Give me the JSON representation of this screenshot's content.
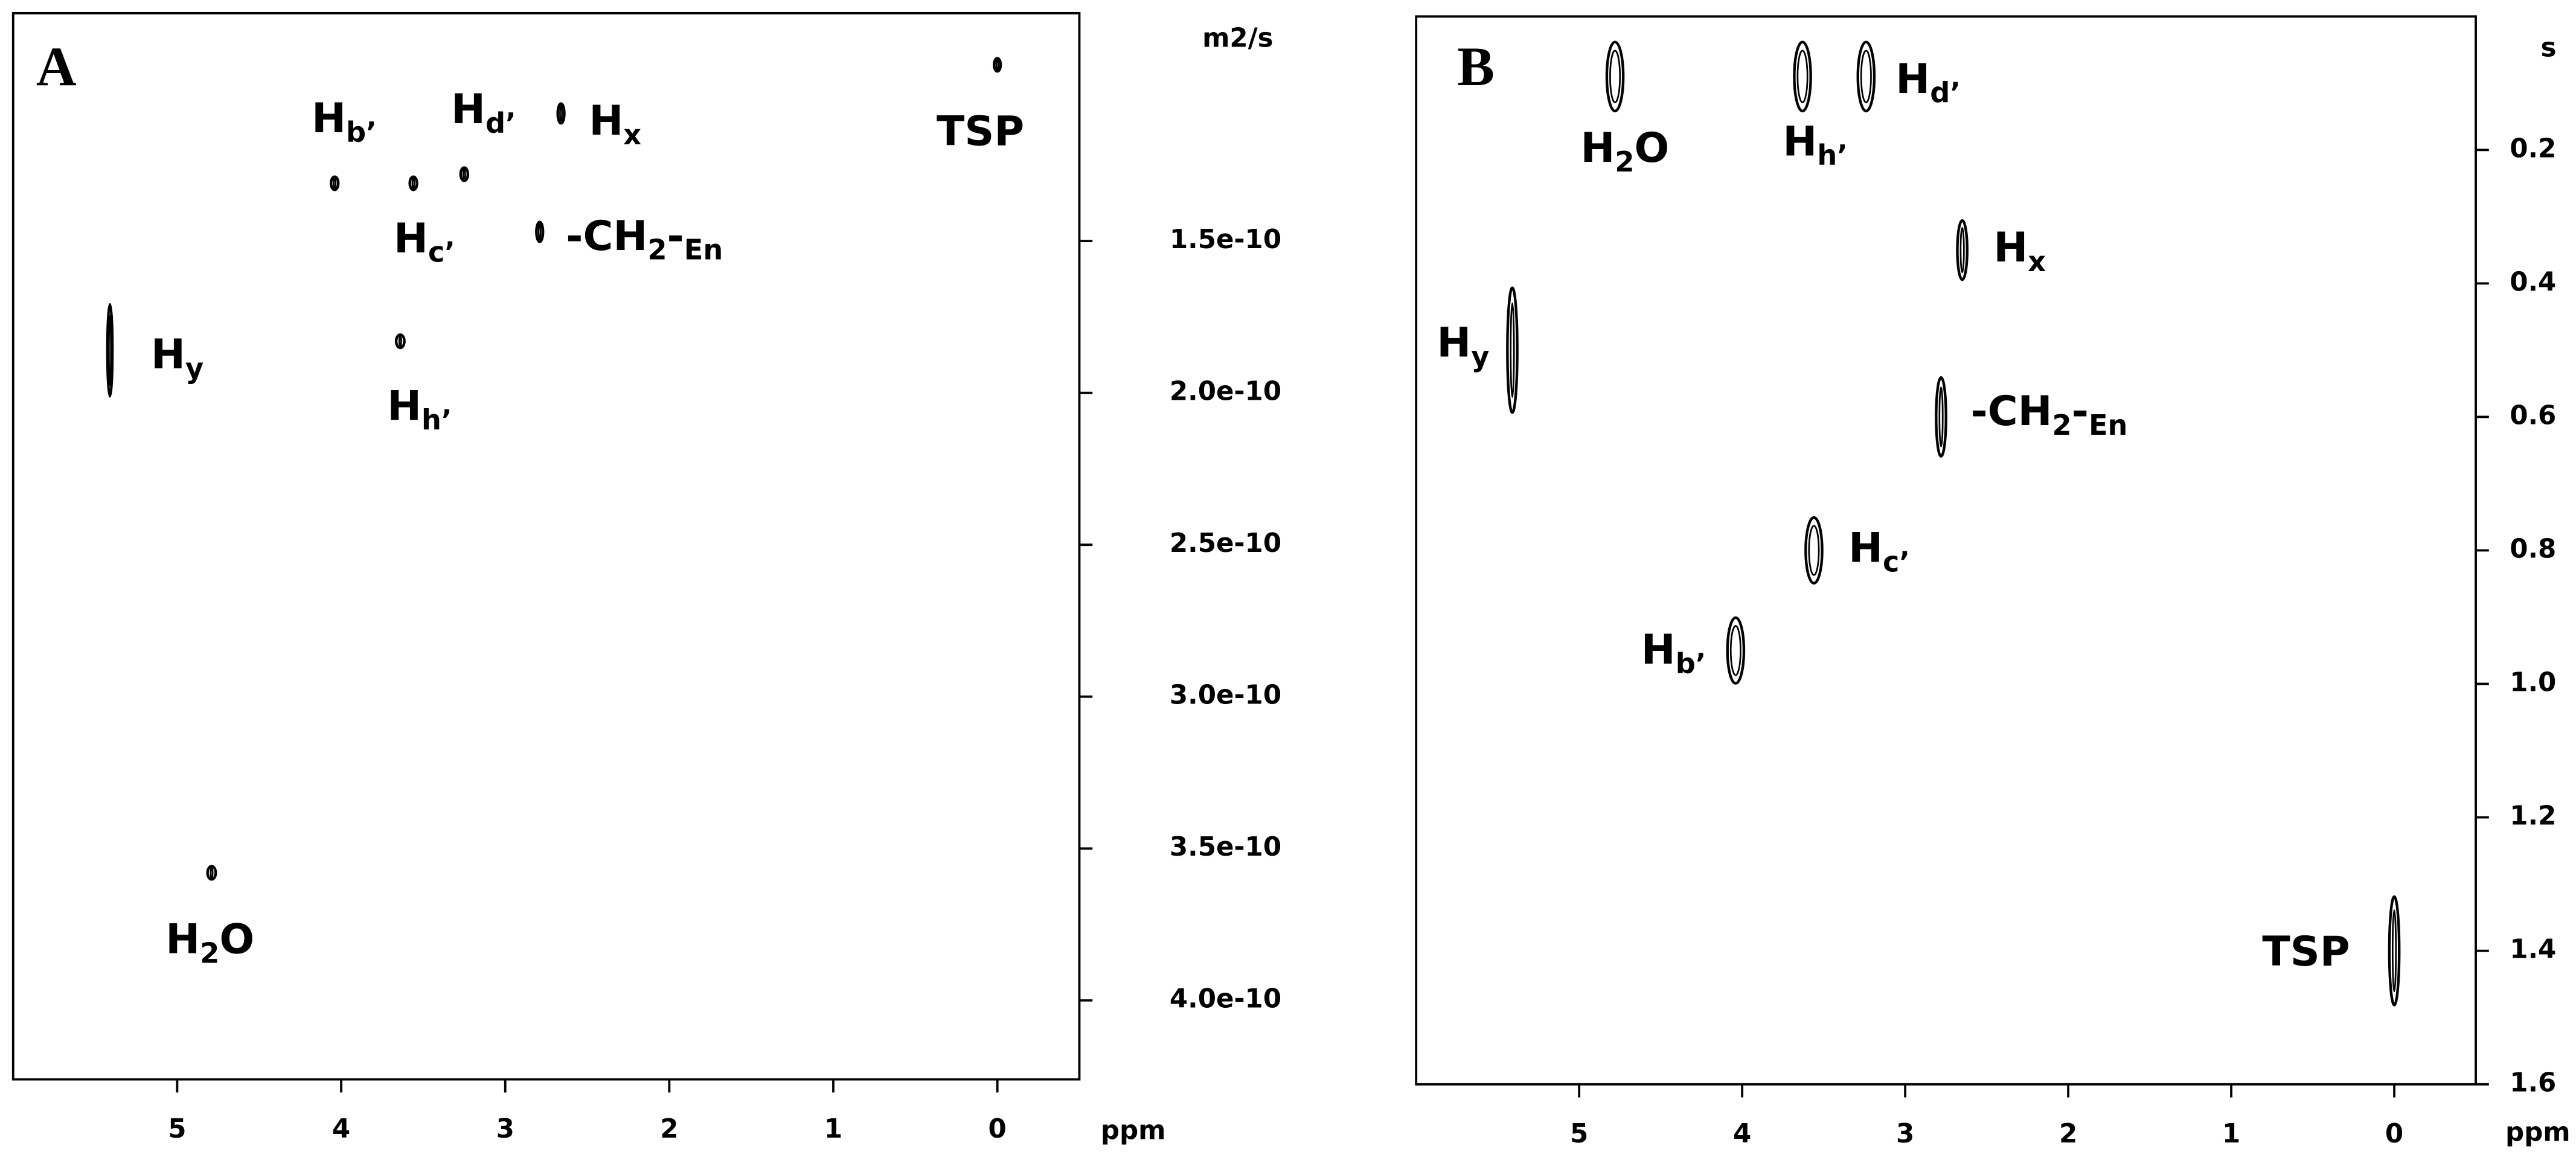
{
  "chart_data": [
    {
      "type": "scatter",
      "panel_label": "A",
      "x_label": "ppm",
      "y_label": "m2/s",
      "xlim": [
        6,
        -0.5
      ],
      "ylim": [
        7.5e-11,
        4.26e-10
      ],
      "xticks": [
        5,
        4,
        3,
        2,
        1,
        0
      ],
      "yticks": [
        1.5e-10,
        {
          "value": 2e-10,
          "label": "2.0e-10"
        },
        2.5e-10,
        {
          "value": 3e-10,
          "label": "3.0e-10"
        },
        3.5e-10,
        {
          "value": 4e-10,
          "label": "4.0e-10"
        }
      ],
      "color": "#000000",
      "x": [
        0.0,
        2.66,
        4.04,
        3.56,
        3.25,
        2.79,
        3.64,
        5.41,
        4.79
      ],
      "values": [
        9.2e-11,
        1.08e-10,
        1.31e-10,
        1.31e-10,
        1.28e-10,
        1.47e-10,
        1.83e-10,
        1.86e-10,
        3.58e-10
      ],
      "labels": [
        [
          "TSP"
        ],
        [
          "H",
          "x"
        ],
        [
          "H",
          "b’"
        ],
        [
          "H",
          "c’"
        ],
        [
          "H",
          "d’"
        ],
        [
          "-CH",
          "2",
          "-",
          "En"
        ],
        [
          "H",
          "h’"
        ],
        [
          "H",
          "y"
        ],
        [
          "H",
          "2",
          "O"
        ]
      ]
    },
    {
      "type": "scatter",
      "panel_label": "B",
      "x_label": "ppm",
      "y_label": "s",
      "xlim": [
        6,
        -0.5
      ],
      "ylim": [
        0,
        1.6
      ],
      "xticks": [
        5,
        4,
        3,
        2,
        1,
        0
      ],
      "yticks": [
        0.2,
        0.4,
        0.6,
        0.8,
        {
          "value": 1,
          "label": "1.0"
        },
        1.2,
        1.4,
        1.6
      ],
      "color": "#000000",
      "x": [
        4.78,
        3.63,
        3.24,
        2.65,
        5.41,
        2.78,
        3.56,
        4.04,
        0.0
      ],
      "values": [
        0.09,
        0.09,
        0.09,
        0.35,
        0.5,
        0.6,
        0.8,
        0.95,
        1.4
      ],
      "labels": [
        [
          "H",
          "2",
          "O"
        ],
        [
          "H",
          "h’"
        ],
        [
          "H",
          "d’"
        ],
        [
          "H",
          "x"
        ],
        [
          "H",
          "y"
        ],
        [
          "-CH",
          "2",
          "-",
          "En"
        ],
        [
          "H",
          "c’"
        ],
        [
          "H",
          "b’"
        ],
        [
          "TSP"
        ]
      ]
    }
  ]
}
